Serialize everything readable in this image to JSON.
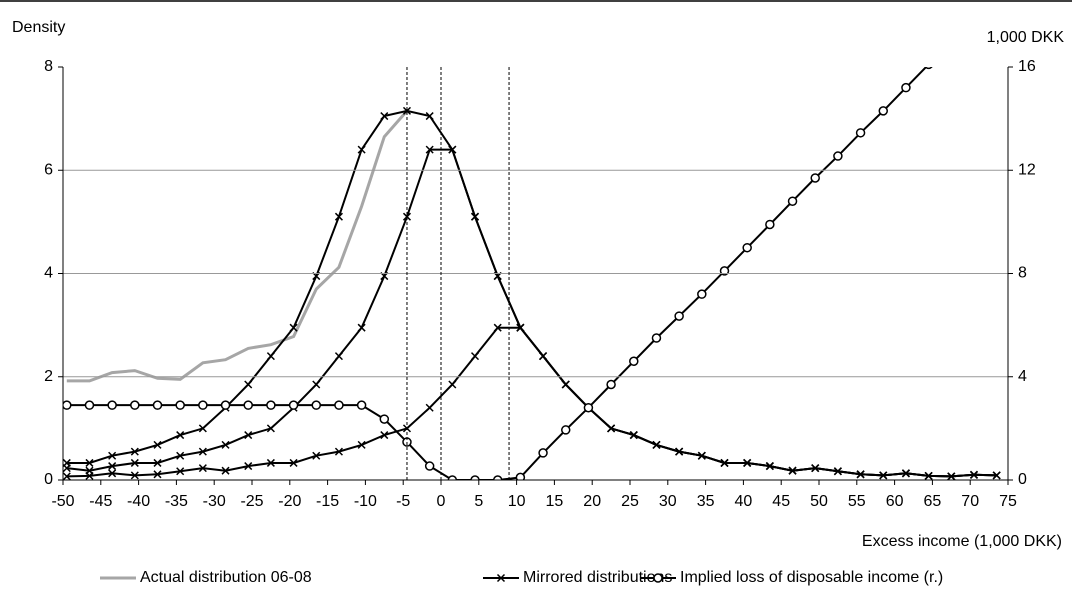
{
  "chart_data": {
    "type": "line",
    "y_label": "Density",
    "y2_label": "1,000 DKK",
    "x_label": "Excess income (1,000 DKK)",
    "x": [
      -49.5,
      -46.5,
      -43.5,
      -40.5,
      -37.5,
      -34.5,
      -31.5,
      -28.5,
      -25.5,
      -22.5,
      -19.5,
      -16.5,
      -13.5,
      -10.5,
      -7.5,
      -4.5,
      -1.5,
      1.5,
      4.5,
      7.5,
      10.5,
      13.5,
      16.5,
      19.5,
      22.5,
      25.5,
      28.5,
      31.5,
      34.5,
      37.5,
      40.5,
      43.5,
      46.5,
      49.5,
      52.5,
      55.5,
      58.5,
      61.5,
      64.5,
      67.5,
      70.5,
      73.5
    ],
    "xlim": [
      -50,
      75
    ],
    "xticks": [
      -50,
      -45,
      -40,
      -35,
      -30,
      -25,
      -20,
      -15,
      -10,
      -5,
      0,
      5,
      10,
      15,
      20,
      25,
      30,
      35,
      40,
      45,
      50,
      55,
      60,
      65,
      70,
      75
    ],
    "ylim": [
      0,
      8
    ],
    "yticks": [
      0,
      2,
      4,
      6,
      8
    ],
    "y2lim": [
      0,
      16
    ],
    "y2ticks": [
      0,
      4,
      8,
      12,
      16
    ],
    "grid": true,
    "vlines": [
      -4.5,
      0,
      9
    ],
    "series": [
      {
        "name": "Actual distribution 06-08",
        "color": "#a6a6a6",
        "marker": "none",
        "values": [
          1.92,
          1.92,
          2.08,
          2.12,
          1.97,
          1.95,
          2.27,
          2.33,
          2.55,
          2.62,
          2.78,
          3.7,
          4.12,
          5.3,
          6.65,
          7.15,
          null,
          null,
          null,
          null,
          null,
          null,
          null,
          null,
          null,
          null,
          null,
          null,
          null,
          null,
          null,
          null,
          null,
          null,
          null,
          null,
          null,
          null,
          null,
          null,
          null,
          null
        ]
      },
      {
        "name": "Mirrored distributions",
        "color": "#000000",
        "marker": "x",
        "values": [
          0.33,
          0.33,
          0.47,
          0.55,
          0.68,
          0.87,
          1.0,
          1.4,
          1.85,
          2.4,
          2.95,
          3.95,
          5.1,
          6.4,
          7.05,
          7.15,
          7.05,
          6.4,
          5.1,
          3.95,
          2.95,
          2.4,
          1.85,
          1.4,
          1.0,
          0.87,
          0.68,
          0.55,
          0.47,
          0.33,
          0.33,
          0.27,
          0.18,
          0.23,
          0.17,
          0.11,
          0.09,
          0.13,
          0.08,
          0.07,
          0.1,
          0.09
        ]
      },
      {
        "name": null,
        "color": "#000000",
        "marker": "x",
        "values": [
          0.23,
          0.18,
          0.27,
          0.33,
          0.33,
          0.47,
          0.55,
          0.68,
          0.87,
          1.0,
          1.4,
          1.85,
          2.4,
          2.95,
          3.95,
          5.1,
          6.4,
          6.4,
          5.1,
          3.95,
          2.95,
          2.4,
          1.85,
          1.4,
          1.0,
          0.87,
          0.68,
          0.55,
          0.47,
          0.33,
          0.33,
          0.27,
          0.18,
          0.23,
          0.17,
          0.11,
          0.09,
          0.13,
          0.08,
          0.07,
          0.1,
          0.09
        ]
      },
      {
        "name": null,
        "color": "#000000",
        "marker": "x",
        "values": [
          0.07,
          0.08,
          0.13,
          0.09,
          0.11,
          0.17,
          0.23,
          0.18,
          0.27,
          0.33,
          0.33,
          0.47,
          0.55,
          0.68,
          0.87,
          1.0,
          1.4,
          1.85,
          2.4,
          2.95,
          2.95,
          2.4,
          1.85,
          1.4,
          1.0,
          0.87,
          0.68,
          0.55,
          0.47,
          0.33,
          0.33,
          0.27,
          0.18,
          0.23,
          0.17,
          0.11,
          0.09,
          0.13,
          0.08,
          0.07,
          0.1,
          0.09
        ]
      },
      {
        "name": "Implied loss of disposable income (r.)",
        "color": "#000000",
        "marker": "o",
        "axis": "y2",
        "values": [
          2.9,
          2.9,
          2.9,
          2.9,
          2.9,
          2.9,
          2.9,
          2.9,
          2.9,
          2.9,
          2.9,
          2.9,
          2.9,
          2.9,
          2.36,
          1.47,
          0.54,
          0,
          0,
          0,
          0.1,
          1.05,
          1.94,
          2.8,
          3.7,
          4.6,
          5.5,
          6.35,
          7.2,
          8.1,
          9.0,
          9.9,
          10.8,
          11.7,
          12.55,
          13.45,
          14.3,
          15.2,
          16.1,
          null,
          null,
          null
        ]
      }
    ]
  }
}
